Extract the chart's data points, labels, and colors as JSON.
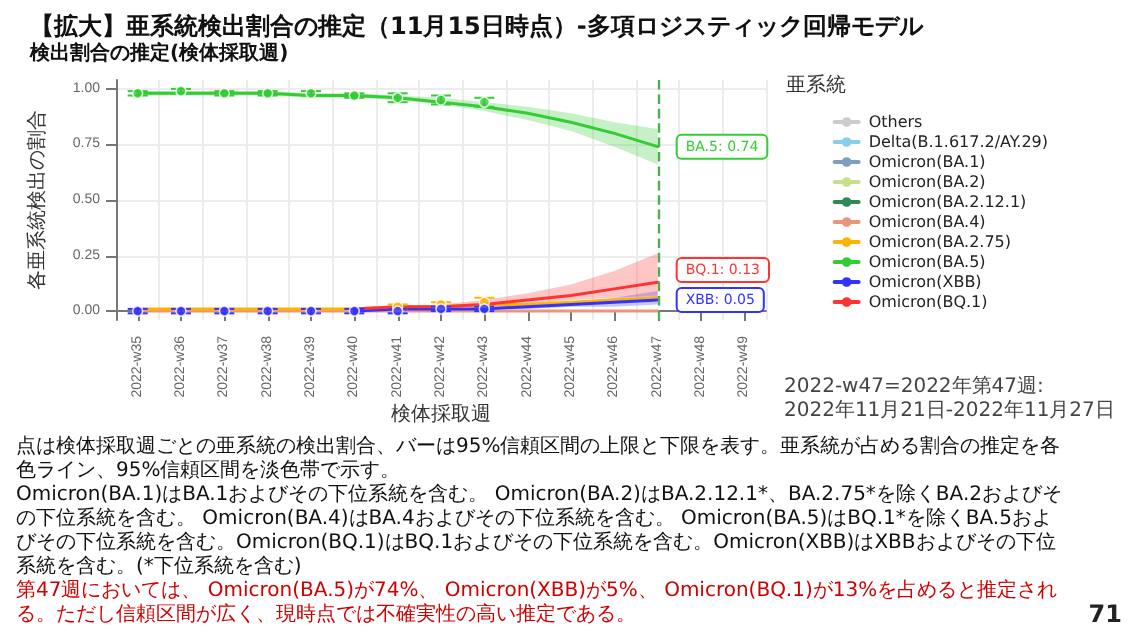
{
  "chart_data": {
    "type": "line",
    "title": "【拡大】亜系統検出割合の推定（11月15日時点）-多項ロジスティック回帰モデル",
    "subtitle": "検出割合の推定(検体採取週)",
    "xlabel": "検体採取週",
    "ylabel": "各亜系統検出の割合",
    "legend_title": "亜系統",
    "categories": [
      "2022-w35",
      "2022-w36",
      "2022-w37",
      "2022-w38",
      "2022-w39",
      "2022-w40",
      "2022-w41",
      "2022-w42",
      "2022-w43",
      "2022-w44",
      "2022-w45",
      "2022-w46",
      "2022-w47",
      "2022-w48",
      "2022-w49"
    ],
    "ylim": [
      -0.04,
      1.04
    ],
    "yticks": [
      {
        "value": 0,
        "label": "0.00"
      },
      {
        "value": 0.25,
        "label": "0.25"
      },
      {
        "value": 0.5,
        "label": "0.50"
      },
      {
        "value": 0.75,
        "label": "0.75"
      },
      {
        "value": 1,
        "label": "1.00"
      }
    ],
    "grid": true,
    "legend": "right",
    "series": [
      {
        "name": "Others",
        "color": "#cccccc",
        "values": [
          null,
          null,
          null,
          null,
          null,
          null,
          null,
          null,
          null,
          null,
          null,
          null,
          null,
          null,
          null
        ]
      },
      {
        "name": "Delta(B.1.617.2/AY.29)",
        "color": "#87ceeb",
        "values": [
          null,
          null,
          null,
          null,
          null,
          null,
          null,
          null,
          null,
          null,
          null,
          null,
          null,
          null,
          null
        ]
      },
      {
        "name": "Omicron(BA.1)",
        "color": "#7f9fbf",
        "values": [
          null,
          null,
          null,
          null,
          null,
          null,
          null,
          null,
          null,
          null,
          null,
          null,
          null,
          null,
          null
        ]
      },
      {
        "name": "Omicron(BA.2)",
        "color": "#c8e08c",
        "values": [
          null,
          null,
          null,
          null,
          null,
          null,
          null,
          null,
          null,
          null,
          null,
          null,
          null,
          null,
          null
        ]
      },
      {
        "name": "Omicron(BA.2.12.1)",
        "color": "#2e8b57",
        "values": [
          null,
          null,
          null,
          null,
          null,
          null,
          null,
          null,
          null,
          null,
          null,
          null,
          null,
          null,
          null
        ]
      },
      {
        "name": "Omicron(BA.4)",
        "color": "#e9967a",
        "values": [
          0,
          0,
          0,
          0,
          0,
          0,
          0,
          0,
          0,
          0,
          0,
          0,
          0,
          null,
          null
        ]
      },
      {
        "name": "Omicron(BA.2.75)",
        "color": "#ffb300",
        "values": [
          0.01,
          0.01,
          0.01,
          0.01,
          0.01,
          0.01,
          0.02,
          0.02,
          0.03,
          0.03,
          0.04,
          0.05,
          0.06,
          null,
          null
        ]
      },
      {
        "name": "Omicron(BA.5)",
        "color": "#33cc33",
        "values": [
          0.98,
          0.98,
          0.98,
          0.98,
          0.97,
          0.97,
          0.96,
          0.94,
          0.92,
          0.89,
          0.85,
          0.8,
          0.74,
          null,
          null
        ],
        "lower": [
          0.97,
          0.97,
          0.97,
          0.97,
          0.96,
          0.96,
          0.95,
          0.93,
          0.9,
          0.86,
          0.81,
          0.74,
          0.66,
          null,
          null
        ],
        "upper": [
          0.99,
          0.99,
          0.99,
          0.99,
          0.98,
          0.98,
          0.97,
          0.96,
          0.94,
          0.92,
          0.89,
          0.85,
          0.82,
          null,
          null
        ]
      },
      {
        "name": "Omicron(XBB)",
        "color": "#3333ff",
        "values": [
          null,
          null,
          null,
          null,
          null,
          0,
          0.01,
          0.01,
          0.01,
          0.02,
          0.03,
          0.04,
          0.05,
          null,
          null
        ],
        "lower": [
          null,
          null,
          null,
          null,
          null,
          0,
          0,
          0.01,
          0.01,
          0.01,
          0.02,
          0.02,
          0.03,
          null,
          null
        ],
        "upper": [
          null,
          null,
          null,
          null,
          null,
          0.01,
          0.01,
          0.01,
          0.02,
          0.03,
          0.04,
          0.06,
          0.09,
          null,
          null
        ]
      },
      {
        "name": "Omicron(BQ.1)",
        "color": "#ff3333",
        "values": [
          null,
          null,
          null,
          null,
          null,
          0.01,
          0.02,
          0.02,
          0.03,
          0.05,
          0.07,
          0.1,
          0.13,
          null,
          null
        ],
        "lower": [
          null,
          null,
          null,
          null,
          null,
          0.01,
          0.01,
          0.02,
          0.03,
          0.03,
          0.05,
          0.06,
          0.07,
          null,
          null
        ],
        "upper": [
          null,
          null,
          null,
          null,
          null,
          0.01,
          0.02,
          0.03,
          0.05,
          0.08,
          0.12,
          0.18,
          0.26,
          null,
          null
        ]
      },
      {
        "type": "scatter",
        "marker": "circle",
        "color": "#33cc33",
        "x": [
          "2022-w35",
          "2022-w36",
          "2022-w37",
          "2022-w38",
          "2022-w39",
          "2022-w40",
          "2022-w41",
          "2022-w42",
          "2022-w43"
        ],
        "values": [
          0.98,
          0.99,
          0.98,
          0.98,
          0.98,
          0.97,
          0.96,
          0.95,
          0.94
        ],
        "errors": [
          0.01,
          0.01,
          0.01,
          0.01,
          0.01,
          0.01,
          0.02,
          0.02,
          0.02
        ]
      },
      {
        "type": "scatter",
        "marker": "circle",
        "color": "#ffb300",
        "x": [
          "2022-w41",
          "2022-w42",
          "2022-w43"
        ],
        "values": [
          0.02,
          0.03,
          0.04
        ],
        "errors": [
          0.01,
          0.01,
          0.02
        ]
      },
      {
        "type": "scatter",
        "marker": "circle",
        "color": "#3333ff",
        "x": [
          "2022-w35",
          "2022-w36",
          "2022-w37",
          "2022-w38",
          "2022-w39",
          "2022-w40",
          "2022-w41",
          "2022-w42",
          "2022-w43"
        ],
        "values": [
          0,
          0,
          0,
          0,
          0,
          0,
          0,
          0.01,
          0.01
        ],
        "errors": [
          0.01,
          0.01,
          0.01,
          0.01,
          0.01,
          0.01,
          0.01,
          0.01,
          0.01
        ]
      }
    ],
    "ref_lines": [
      {
        "axis": "x",
        "value": "2022-w47",
        "color": "#4caf50",
        "line_style": "dashed"
      }
    ],
    "annotations": [
      {
        "text": "BA.5: 0.74",
        "x": "2022-w47",
        "y": 0.74
      },
      {
        "text": "BQ.1: 0.13",
        "x": "2022-w47",
        "y": 0.13
      },
      {
        "text": "XBB: 0.05",
        "x": "2022-w47",
        "y": 0.05
      },
      "2022-w47=2022年第47週:\n2022年11月21日-2022年11月27日",
      "点は検体採取週ごとの亜系統の検出割合、バーは95%信頼区間の上限と下限を表す。亜系統が占める割合の推定を各色ライン、95%信頼区間を淡色帯で示す。",
      "Omicron(BA.1)はBA.1およびその下位系統を含む。 Omicron(BA.2)はBA.2.12.1*、BA.2.75*を除くBA.2およびその下位系統を含む。 Omicron(BA.4)はBA.4およびその下位系統を含む。 Omicron(BA.5)はBQ.1*を除くBA.5およびその下位系統を含む。Omicron(BQ.1)はBQ.1およびその下位系統を含む。Omicron(XBB)はXBBおよびその下位系統を含む。(*下位系統を含む)",
      "第47週においては、 Omicron(BA.5)が74%、 Omicron(XBB)が5%、 Omicron(BQ.1)が13%を占めると推定される。ただし信頼区間が広く、現時点では不確実性の高い推定である。",
      "71"
    ]
  }
}
